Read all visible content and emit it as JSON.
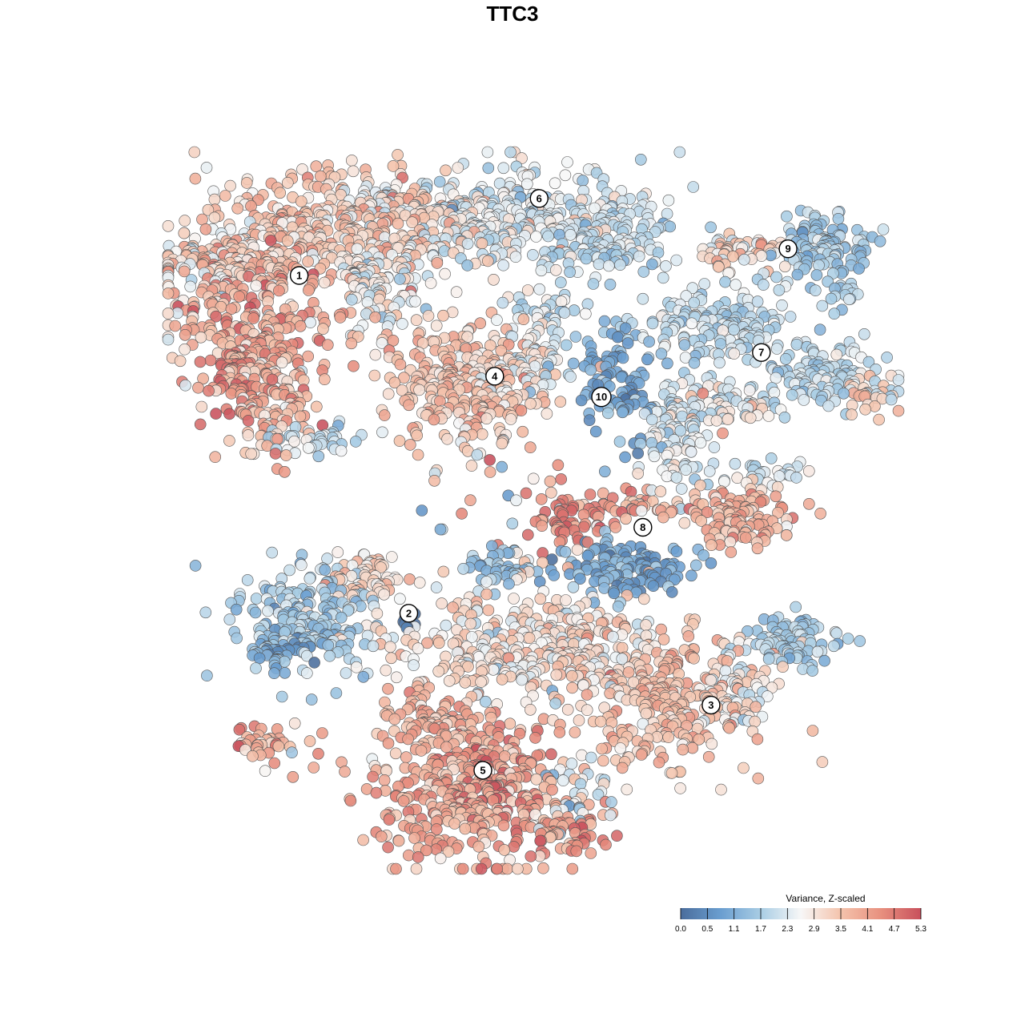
{
  "chart_data": {
    "type": "scatter",
    "title": "TTC3",
    "xlabel": "",
    "ylabel": "",
    "grid": false,
    "color_scale": {
      "title": "Variance, Z-scaled",
      "min": 0.0,
      "max": 5.3,
      "ticks": [
        "0.0",
        "0.5",
        "1.1",
        "1.7",
        "2.3",
        "2.9",
        "3.5",
        "4.1",
        "4.7",
        "5.3"
      ],
      "colors": [
        "#4a6d9c",
        "#6a9ed0",
        "#a9cde4",
        "#f7f7f7",
        "#f4c3ac",
        "#e8907f",
        "#c8505c"
      ],
      "legend_placement": "bottom-right"
    },
    "clusters": [
      {
        "label": "1",
        "x": -7.2,
        "y": 8.0
      },
      {
        "label": "2",
        "x": -3.5,
        "y": -3.4
      },
      {
        "label": "3",
        "x": 6.7,
        "y": -6.5
      },
      {
        "label": "4",
        "x": -0.6,
        "y": 4.6
      },
      {
        "label": "5",
        "x": -1.0,
        "y": -8.7
      },
      {
        "label": "6",
        "x": 0.9,
        "y": 10.6
      },
      {
        "label": "7",
        "x": 8.4,
        "y": 5.4
      },
      {
        "label": "8",
        "x": 4.4,
        "y": -0.5
      },
      {
        "label": "9",
        "x": 9.3,
        "y": 8.9
      },
      {
        "label": "10",
        "x": 3.0,
        "y": 3.9
      }
    ]
  }
}
